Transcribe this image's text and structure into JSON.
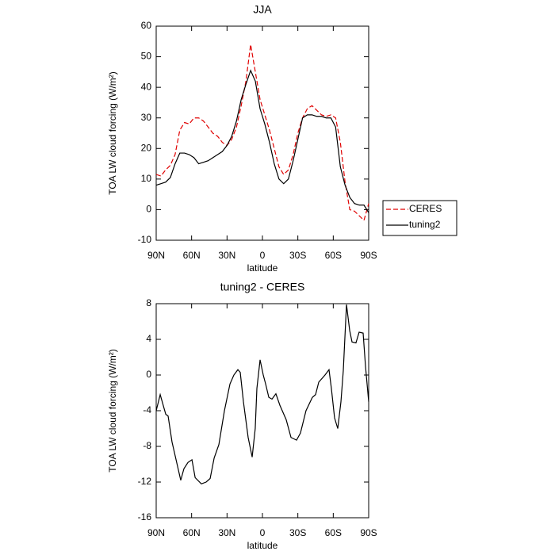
{
  "chart_data": [
    {
      "type": "line",
      "title": "JJA",
      "x_label": "latitude",
      "y_label": "TOA LW cloud forcing (W/m²)",
      "x": [
        90,
        86,
        82,
        78,
        74,
        70,
        66,
        62,
        58,
        54,
        50,
        46,
        42,
        38,
        34,
        30,
        26,
        22,
        18,
        14,
        10,
        6,
        2,
        -2,
        -6,
        -10,
        -14,
        -18,
        -22,
        -26,
        -30,
        -34,
        -38,
        -42,
        -46,
        -50,
        -54,
        -58,
        -62,
        -66,
        -70,
        -74,
        -78,
        -82,
        -86,
        -90
      ],
      "series": [
        {
          "name": "CERES",
          "color": "#e00000",
          "line_style": "dashed",
          "values": [
            11.5,
            11,
            13,
            14.5,
            18,
            26,
            28.5,
            28,
            30,
            30,
            29,
            27,
            25,
            24,
            22,
            21,
            23,
            27,
            34,
            42,
            54,
            45,
            36,
            31,
            26,
            20,
            14,
            11.5,
            13,
            18,
            25,
            30,
            33,
            34,
            32.5,
            31,
            30.5,
            31,
            30,
            22,
            9,
            0,
            -0.5,
            -2,
            -3.5,
            2
          ]
        },
        {
          "name": "tuning2",
          "color": "#000000",
          "line_style": "solid",
          "values": [
            8,
            8.5,
            9,
            10.5,
            15,
            18.5,
            18.5,
            18,
            17,
            15,
            15.5,
            16,
            17,
            18,
            19,
            21,
            24,
            29,
            36,
            41,
            45.5,
            42,
            33,
            28,
            22,
            15,
            10,
            8.5,
            10,
            16,
            23,
            30,
            31,
            31,
            30.5,
            30.5,
            30,
            30,
            27,
            14,
            8,
            4,
            2,
            1.5,
            1.5,
            -1
          ]
        }
      ],
      "xlim": [
        90,
        -90
      ],
      "xticks": [
        {
          "value": 90,
          "label": "90N"
        },
        {
          "value": 60,
          "label": "60N"
        },
        {
          "value": 30,
          "label": "30N"
        },
        0,
        {
          "value": -30,
          "label": "30S"
        },
        {
          "value": -60,
          "label": "60S"
        },
        {
          "value": -90,
          "label": "90S"
        }
      ],
      "ylim": [
        -10,
        60
      ],
      "yticks": [
        -10,
        0,
        10,
        20,
        30,
        40,
        50,
        60
      ],
      "grid": false,
      "legend": "right"
    },
    {
      "type": "line",
      "title": "tuning2 - CERES",
      "x_label": "latitude",
      "y_label": "TOA LW cloud forcing (W/m²)",
      "x": [
        90,
        86.6,
        81.9,
        79.9,
        76.6,
        69.2,
        66.5,
        63.1,
        59.7,
        57,
        51.7,
        47.7,
        44.3,
        40.9,
        36.9,
        32.2,
        27.5,
        24.2,
        20.8,
        18.8,
        16.1,
        12.1,
        8.7,
        6.1,
        4.7,
        2,
        -0.7,
        -2.7,
        -5.4,
        -8.1,
        -11.4,
        -14.8,
        -20.1,
        -24.2,
        -28.9,
        -32.2,
        -36.9,
        -42.3,
        -45,
        -47.7,
        -53,
        -56.4,
        -58.4,
        -61.1,
        -63.8,
        -66.5,
        -68.5,
        -71.2,
        -73.9,
        -75.9,
        -79.2,
        -81.9,
        -85.3,
        -87.3,
        -90
      ],
      "values": [
        -4,
        -2.2,
        -4.4,
        -4.6,
        -7.5,
        -11.8,
        -10.5,
        -9.8,
        -9.5,
        -11.5,
        -12.2,
        -12,
        -11.6,
        -9.3,
        -7.8,
        -4,
        -1,
        0,
        0.6,
        0.3,
        -3,
        -7,
        -9.2,
        -6,
        -1.5,
        1.7,
        0,
        -1,
        -2.5,
        -2.7,
        -2.1,
        -3.4,
        -5,
        -7,
        -7.3,
        -6.5,
        -4,
        -2.5,
        -2.2,
        -0.8,
        0,
        0.6,
        -1.5,
        -4.8,
        -6,
        -3,
        0.5,
        7.9,
        5,
        3.7,
        3.6,
        4.8,
        4.7,
        1,
        -3
      ],
      "color": "#000000",
      "line_style": "solid",
      "xlim": [
        90,
        -90
      ],
      "xticks": [
        {
          "value": 90,
          "label": "90N"
        },
        {
          "value": 60,
          "label": "60N"
        },
        {
          "value": 30,
          "label": "30N"
        },
        0,
        {
          "value": -30,
          "label": "30S"
        },
        {
          "value": -60,
          "label": "60S"
        },
        {
          "value": -90,
          "label": "90S"
        }
      ],
      "ylim": [
        -16,
        8
      ],
      "yticks": [
        -16,
        -12,
        -8,
        -4,
        0,
        4,
        8
      ],
      "grid": false
    }
  ]
}
